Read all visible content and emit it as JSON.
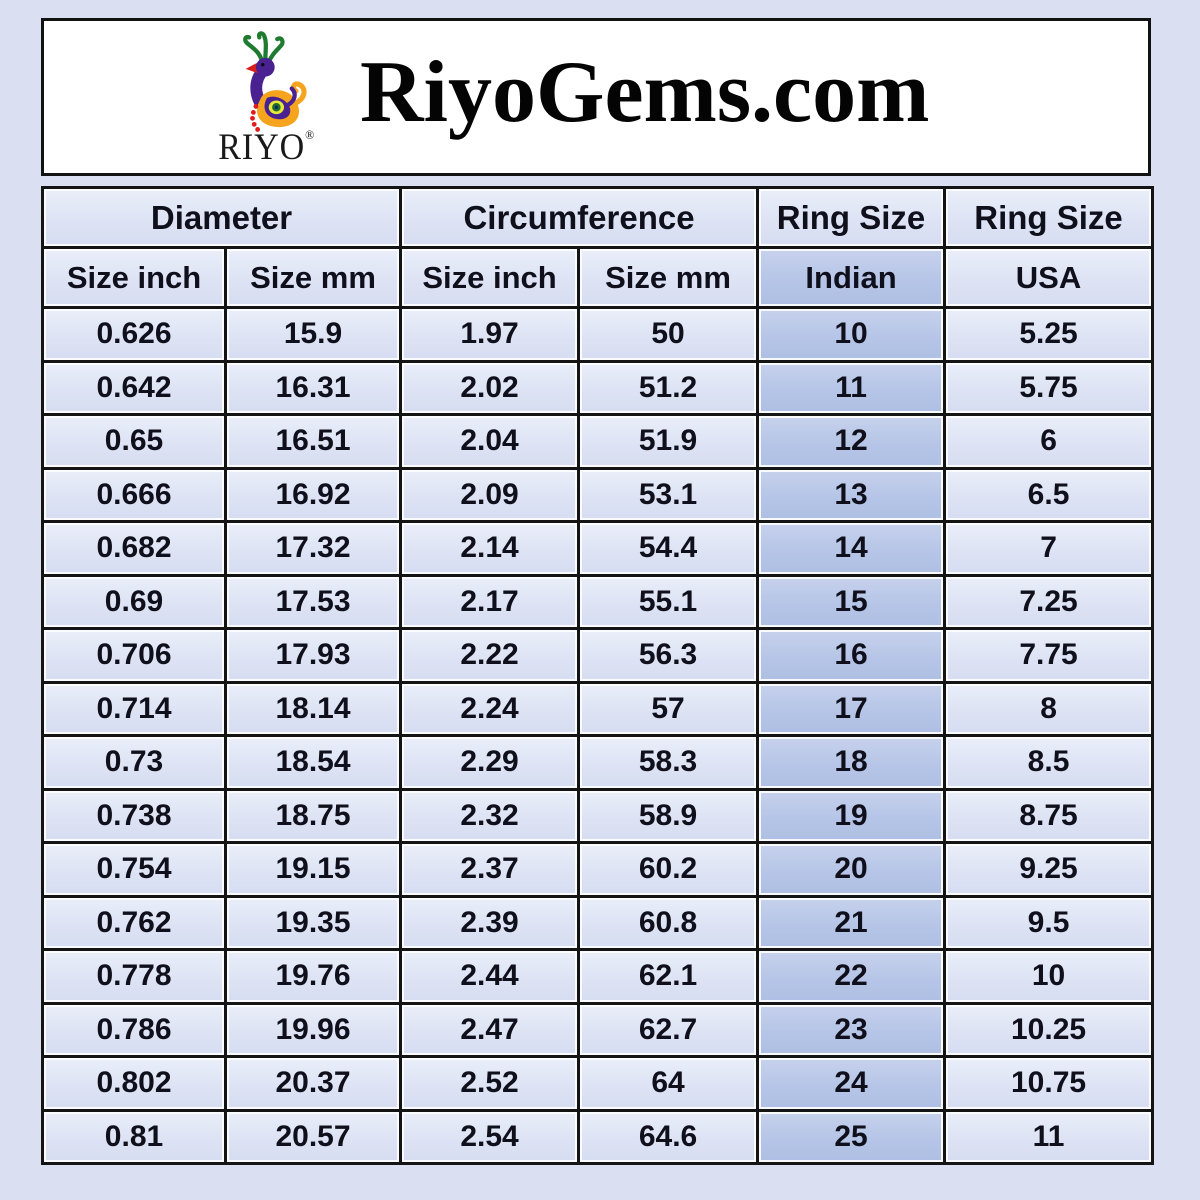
{
  "header": {
    "brand": "RIYO",
    "registered_mark": "®",
    "title": "RiyoGems.com"
  },
  "table": {
    "group_headers": {
      "diameter": "Diameter",
      "circumference": "Circumference",
      "ring_size_indian": "Ring Size",
      "ring_size_usa": "Ring Size"
    },
    "sub_headers": [
      "Size inch",
      "Size mm",
      "Size inch",
      "Size mm",
      "Indian",
      "USA"
    ],
    "rows": [
      [
        "0.626",
        "15.9",
        "1.97",
        "50",
        "10",
        "5.25"
      ],
      [
        "0.642",
        "16.31",
        "2.02",
        "51.2",
        "11",
        "5.75"
      ],
      [
        "0.65",
        "16.51",
        "2.04",
        "51.9",
        "12",
        "6"
      ],
      [
        "0.666",
        "16.92",
        "2.09",
        "53.1",
        "13",
        "6.5"
      ],
      [
        "0.682",
        "17.32",
        "2.14",
        "54.4",
        "14",
        "7"
      ],
      [
        "0.69",
        "17.53",
        "2.17",
        "55.1",
        "15",
        "7.25"
      ],
      [
        "0.706",
        "17.93",
        "2.22",
        "56.3",
        "16",
        "7.75"
      ],
      [
        "0.714",
        "18.14",
        "2.24",
        "57",
        "17",
        "8"
      ],
      [
        "0.73",
        "18.54",
        "2.29",
        "58.3",
        "18",
        "8.5"
      ],
      [
        "0.738",
        "18.75",
        "2.32",
        "58.9",
        "19",
        "8.75"
      ],
      [
        "0.754",
        "19.15",
        "2.37",
        "60.2",
        "20",
        "9.25"
      ],
      [
        "0.762",
        "19.35",
        "2.39",
        "60.8",
        "21",
        "9.5"
      ],
      [
        "0.778",
        "19.76",
        "2.44",
        "62.1",
        "22",
        "10"
      ],
      [
        "0.786",
        "19.96",
        "2.47",
        "62.7",
        "23",
        "10.25"
      ],
      [
        "0.802",
        "20.37",
        "2.52",
        "64",
        "24",
        "10.75"
      ],
      [
        "0.81",
        "20.57",
        "2.54",
        "64.6",
        "25",
        "11"
      ]
    ]
  },
  "chart_data": {
    "type": "table",
    "title": "RiyoGems.com ring size conversion chart",
    "column_groups": [
      "Diameter",
      "Diameter",
      "Circumference",
      "Circumference",
      "Ring Size",
      "Ring Size"
    ],
    "columns": [
      "Diameter Size inch",
      "Diameter Size mm",
      "Circumference Size inch",
      "Circumference Size mm",
      "Ring Size Indian",
      "Ring Size USA"
    ],
    "rows": [
      [
        0.626,
        15.9,
        1.97,
        50,
        10,
        5.25
      ],
      [
        0.642,
        16.31,
        2.02,
        51.2,
        11,
        5.75
      ],
      [
        0.65,
        16.51,
        2.04,
        51.9,
        12,
        6
      ],
      [
        0.666,
        16.92,
        2.09,
        53.1,
        13,
        6.5
      ],
      [
        0.682,
        17.32,
        2.14,
        54.4,
        14,
        7
      ],
      [
        0.69,
        17.53,
        2.17,
        55.1,
        15,
        7.25
      ],
      [
        0.706,
        17.93,
        2.22,
        56.3,
        16,
        7.75
      ],
      [
        0.714,
        18.14,
        2.24,
        57,
        17,
        8
      ],
      [
        0.73,
        18.54,
        2.29,
        58.3,
        18,
        8.5
      ],
      [
        0.738,
        18.75,
        2.32,
        58.9,
        19,
        8.75
      ],
      [
        0.754,
        19.15,
        2.37,
        60.2,
        20,
        9.25
      ],
      [
        0.762,
        19.35,
        2.39,
        60.8,
        21,
        9.5
      ],
      [
        0.778,
        19.76,
        2.44,
        62.1,
        22,
        10
      ],
      [
        0.786,
        19.96,
        2.47,
        62.7,
        23,
        10.25
      ],
      [
        0.802,
        20.37,
        2.52,
        64,
        24,
        10.75
      ],
      [
        0.81,
        20.57,
        2.54,
        64.6,
        25,
        11
      ]
    ]
  },
  "colors": {
    "page_background": "#dae0f2",
    "cell_background": "#dde3f4",
    "indian_column_background": "#b6c5e7",
    "cell_border": "#141414",
    "text": "#10101c",
    "header_box_background": "#ffffff",
    "logo_orange": "#f6a41e",
    "logo_purple": "#4a2191",
    "logo_green": "#1e7b2f",
    "logo_red": "#e01b1b"
  }
}
